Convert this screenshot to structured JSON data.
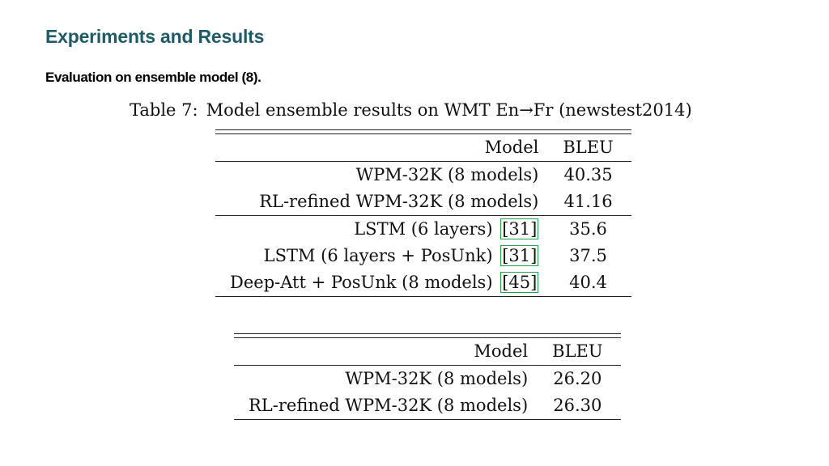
{
  "slide": {
    "title": "Experiments and Results",
    "subtitle": "Evaluation on ensemble model (8)."
  },
  "table7": {
    "caption_label": "Table 7:",
    "caption_text": "Model ensemble results on WMT En→Fr (newstest2014)",
    "header": {
      "model": "Model",
      "bleu": "BLEU"
    },
    "rows": [
      {
        "model": "WPM-32K (8 models)",
        "cite": "",
        "bleu": "40.35"
      },
      {
        "model": "RL-refined WPM-32K (8 models)",
        "cite": "",
        "bleu": "41.16"
      },
      {
        "model": "LSTM (6 layers)",
        "cite": "31",
        "bleu": "35.6"
      },
      {
        "model": "LSTM (6 layers + PosUnk)",
        "cite": "31",
        "bleu": "37.5"
      },
      {
        "model": "Deep-Att + PosUnk (8 models)",
        "cite": "45",
        "bleu": "40.4"
      }
    ],
    "link_color": "#1fa84a"
  },
  "table_enDe": {
    "header": {
      "model": "Model",
      "bleu": "BLEU"
    },
    "rows": [
      {
        "model": "WPM-32K (8 models)",
        "bleu": "26.20"
      },
      {
        "model": "RL-refined WPM-32K (8 models)",
        "bleu": "26.30"
      }
    ]
  },
  "colors": {
    "title": "#1f5a68",
    "text": "#111111"
  }
}
